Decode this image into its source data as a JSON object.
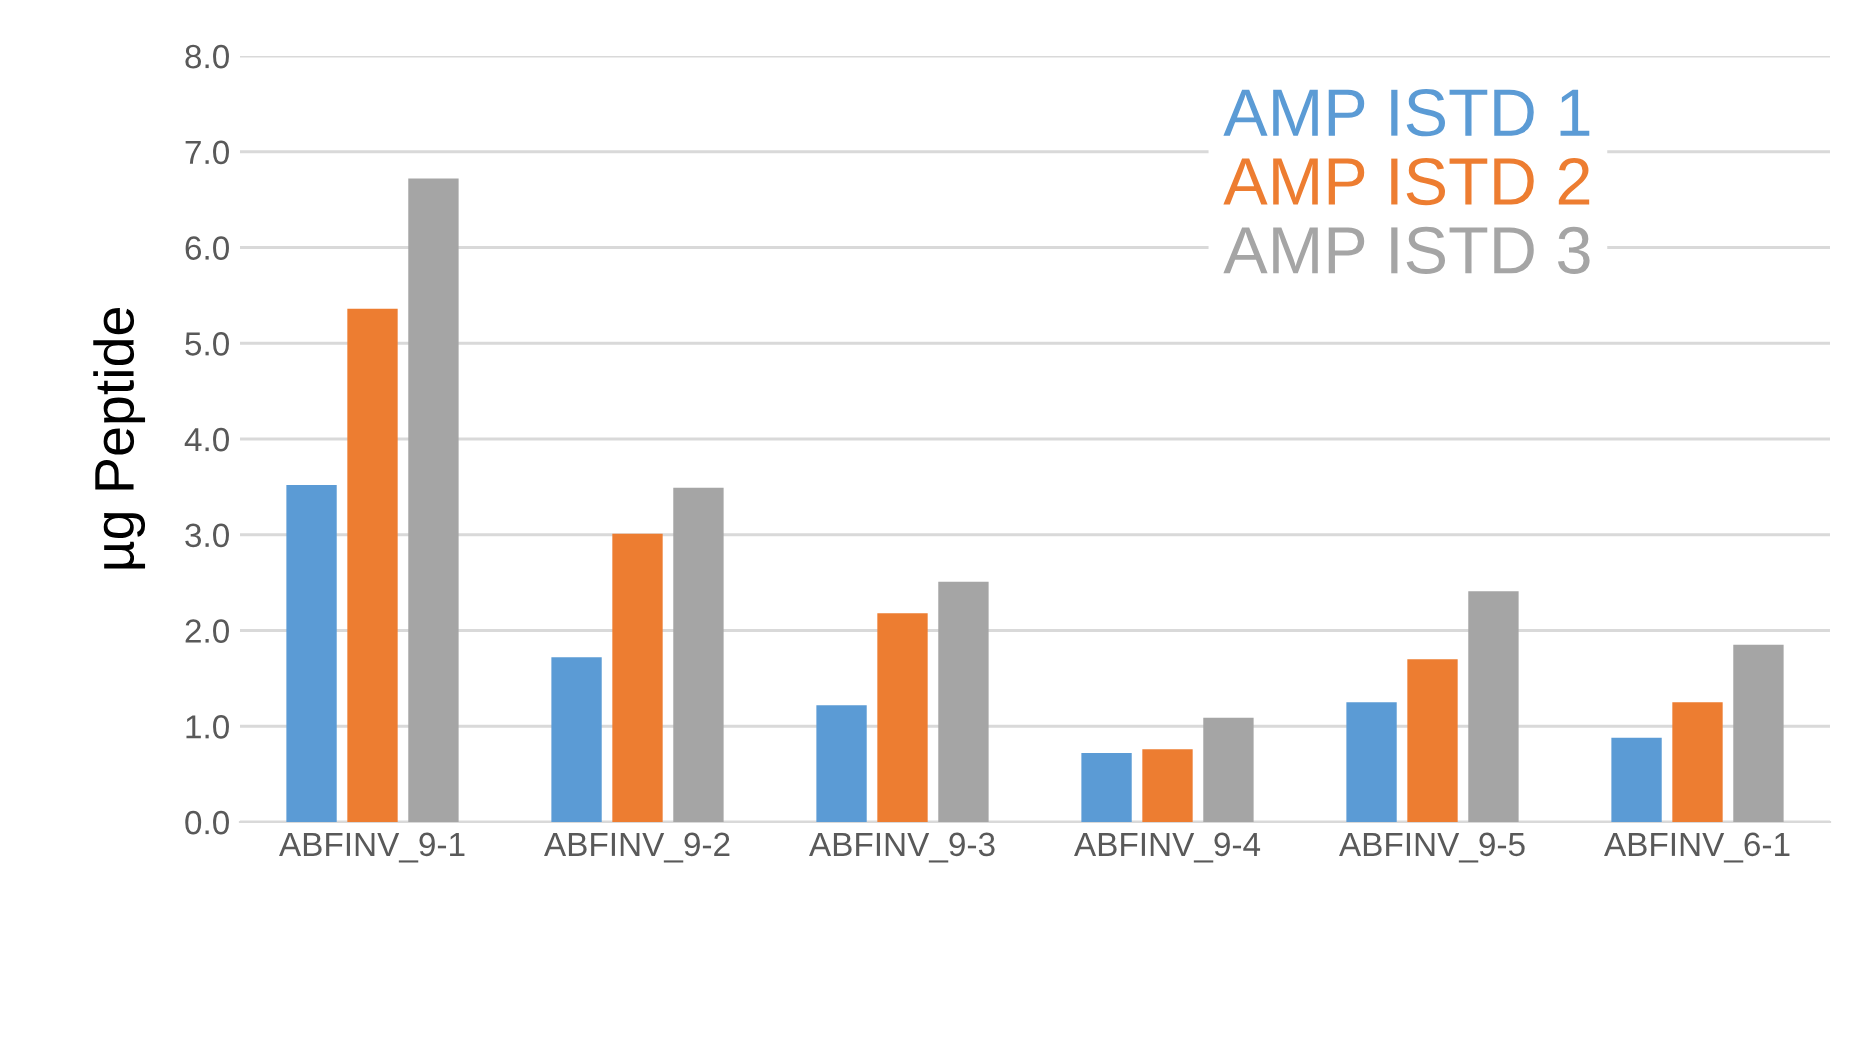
{
  "chart_data": {
    "type": "bar",
    "ylabel": "µg Peptide",
    "categories": [
      "ABFINV_9-1",
      "ABFINV_9-2",
      "ABFINV_9-3",
      "ABFINV_9-4",
      "ABFINV_9-5",
      "ABFINV_6-1"
    ],
    "series": [
      {
        "name": "AMP ISTD 1",
        "color": "#5b9bd5",
        "values": [
          3.52,
          1.72,
          1.22,
          0.72,
          1.25,
          0.88
        ]
      },
      {
        "name": "AMP ISTD 2",
        "color": "#ed7d31",
        "values": [
          5.36,
          3.01,
          2.18,
          0.76,
          1.7,
          1.25
        ]
      },
      {
        "name": "AMP ISTD 3",
        "color": "#a5a5a5",
        "values": [
          6.72,
          3.49,
          2.51,
          1.09,
          2.41,
          1.85
        ]
      }
    ],
    "ylim": [
      0,
      8
    ],
    "yticks": [
      {
        "value": 0,
        "label": "0.0"
      },
      {
        "value": 1,
        "label": "1.0"
      },
      {
        "value": 2,
        "label": "2.0"
      },
      {
        "value": 3,
        "label": "3.0"
      },
      {
        "value": 4,
        "label": "4.0"
      },
      {
        "value": 5,
        "label": "5.0"
      },
      {
        "value": 6,
        "label": "6.0"
      },
      {
        "value": 7,
        "label": "7.0"
      },
      {
        "value": 8,
        "label": "8.0"
      }
    ],
    "grid": "y",
    "legend": "top right"
  }
}
